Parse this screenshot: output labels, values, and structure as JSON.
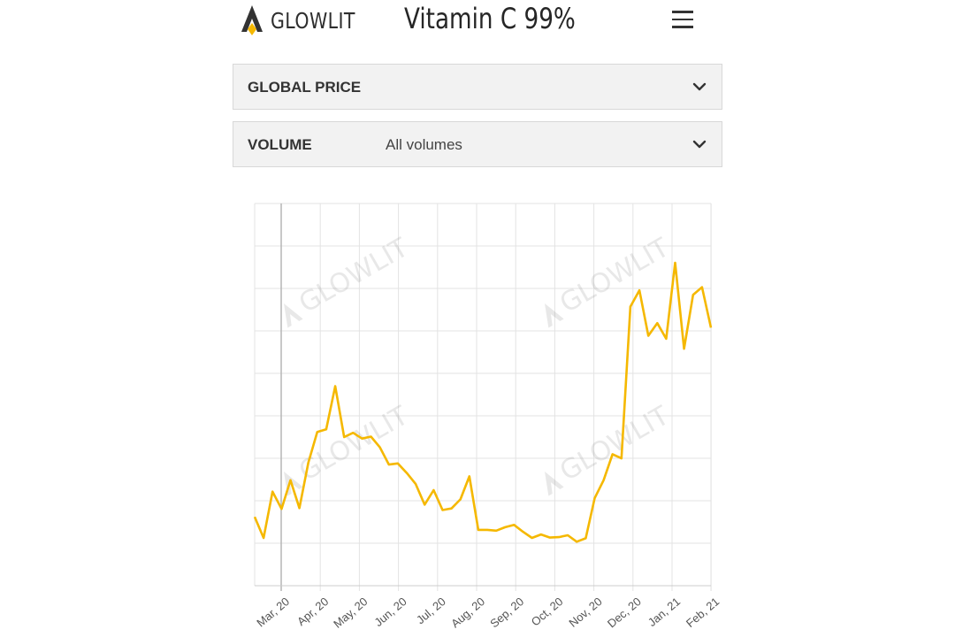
{
  "header": {
    "logo_text": "GLOWLIT",
    "title": "Vitamin C 99%",
    "menu_icon": "hamburger-menu-icon"
  },
  "filters": {
    "global_price": {
      "label": "GLOBAL PRICE",
      "icon": "chevron-down-icon"
    },
    "volume": {
      "label": "VOLUME",
      "value": "All volumes",
      "icon": "chevron-down-icon"
    }
  },
  "colors": {
    "line": "#f5b800",
    "logo_accent": "#f5b800",
    "grid": "#e3e3e3",
    "accordion_bg": "#f2f2f2"
  },
  "watermark_text": "GLOWLIT",
  "chart_data": {
    "type": "line",
    "xlabel": "",
    "ylabel": "",
    "grid": true,
    "y_axis_labels": false,
    "ylim": [
      0,
      100
    ],
    "x_tick_labels": [
      "Mar, 20",
      "Apr, 20",
      "May, 20",
      "Jun, 20",
      "Jul, 20",
      "Aug, 20",
      "Sep, 20",
      "Oct, 20",
      "Nov, 20",
      "Dec, 20",
      "Jan, 21",
      "Feb, 21"
    ],
    "series": [
      {
        "values": [
          18.0,
          12.5,
          24.6,
          20.1,
          27.6,
          20.3,
          32.2,
          40.2,
          40.9,
          52.2,
          38.9,
          40.0,
          38.5,
          39.0,
          36.2,
          31.7,
          32.0,
          29.5,
          26.6,
          21.2,
          25.0,
          19.8,
          20.2,
          22.6,
          28.6,
          14.6,
          14.6,
          14.4,
          15.3,
          15.9,
          14.1,
          12.5,
          13.4,
          12.6,
          12.7,
          13.2,
          11.5,
          12.4,
          22.9,
          27.6,
          34.4,
          33.3,
          73.0,
          77.3,
          65.4,
          68.7,
          64.6,
          84.5,
          62.0,
          76.1,
          78.1,
          67.5
        ]
      }
    ]
  }
}
